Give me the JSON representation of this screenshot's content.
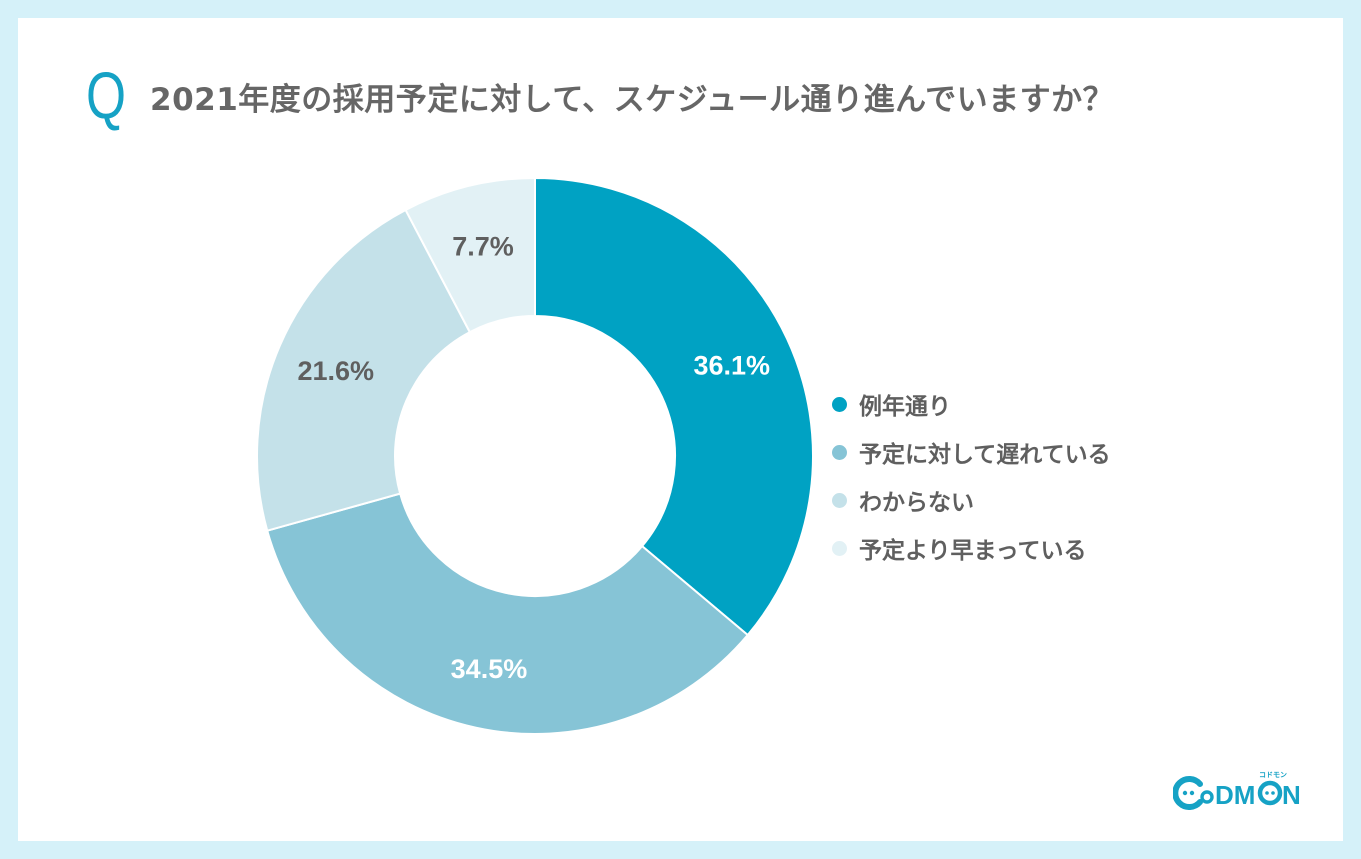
{
  "question": {
    "mark": "Q",
    "text": "2021年度の採用予定に対して、スケジュール通り進んでいますか？"
  },
  "colors": {
    "background": "#d5f1f9",
    "card": "#ffffff",
    "accent": "#16a2c5",
    "title_text": "#666666",
    "slice_1": "#00a2c3",
    "slice_2": "#86c4d6",
    "slice_3": "#c4e1e9",
    "slice_4": "#e2f1f5"
  },
  "chart_data": {
    "type": "pie",
    "subtype": "donut",
    "title": "2021年度の採用予定に対して、スケジュール通り進んでいますか？",
    "categories": [
      "例年通り",
      "予定に対して遅れている",
      "わからない",
      "予定より早まっている"
    ],
    "values": [
      36.1,
      34.5,
      21.6,
      7.7
    ],
    "unit": "%",
    "labels": [
      "36.1%",
      "34.5%",
      "21.6%",
      "7.7%"
    ],
    "colors": [
      "#00a2c3",
      "#86c4d6",
      "#c4e1e9",
      "#e2f1f5"
    ],
    "start_angle": "12 o'clock",
    "direction": "clockwise",
    "legend_position": "right"
  },
  "legend": {
    "items": [
      {
        "label": "例年通り",
        "color": "#00a2c3"
      },
      {
        "label": "予定に対して遅れている",
        "color": "#86c4d6"
      },
      {
        "label": "わからない",
        "color": "#c4e1e9"
      },
      {
        "label": "予定より早まっている",
        "color": "#e2f1f5"
      }
    ]
  },
  "logo": {
    "text": "CoDMON",
    "kana": "コドモン"
  }
}
